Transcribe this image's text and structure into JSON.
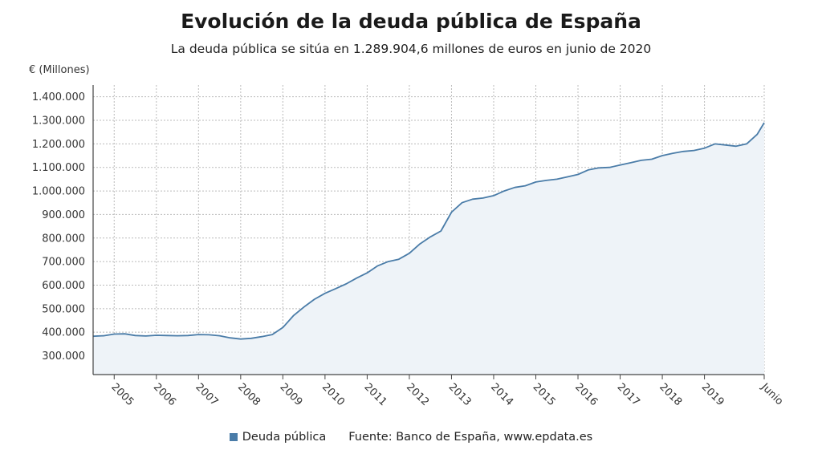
{
  "colors": {
    "series_line": "#4a7ca8",
    "area_fill": "#eef3f8",
    "grid": "#bbbbbb",
    "axis": "#444444"
  },
  "chart_data": {
    "type": "area",
    "title": "Evolución de la deuda pública de España",
    "subtitle": "La deuda pública se sitúa en 1.289.904,6 millones de euros en junio de 2020",
    "ylabel": "€ (Millones)",
    "xlabel": "",
    "ylim": [
      220000,
      1450000
    ],
    "yticks": [
      {
        "value": 300000,
        "label": "300.000"
      },
      {
        "value": 400000,
        "label": "400.000"
      },
      {
        "value": 500000,
        "label": "500.000"
      },
      {
        "value": 600000,
        "label": "600.000"
      },
      {
        "value": 700000,
        "label": "700.000"
      },
      {
        "value": 800000,
        "label": "800.000"
      },
      {
        "value": 900000,
        "label": "900.000"
      },
      {
        "value": 1000000,
        "label": "1.000.000"
      },
      {
        "value": 1100000,
        "label": "1.100.000"
      },
      {
        "value": 1200000,
        "label": "1.200.000"
      },
      {
        "value": 1300000,
        "label": "1.300.000"
      },
      {
        "value": 1400000,
        "label": "1.400.000"
      }
    ],
    "xlim": [
      "2004-07",
      "2020-06"
    ],
    "xticks": [
      {
        "x": "2005-01",
        "label": "2005"
      },
      {
        "x": "2006-01",
        "label": "2006"
      },
      {
        "x": "2007-01",
        "label": "2007"
      },
      {
        "x": "2008-01",
        "label": "2008"
      },
      {
        "x": "2009-01",
        "label": "2009"
      },
      {
        "x": "2010-01",
        "label": "2010"
      },
      {
        "x": "2011-01",
        "label": "2011"
      },
      {
        "x": "2012-01",
        "label": "2012"
      },
      {
        "x": "2013-01",
        "label": "2013"
      },
      {
        "x": "2014-01",
        "label": "2014"
      },
      {
        "x": "2015-01",
        "label": "2015"
      },
      {
        "x": "2016-01",
        "label": "2016"
      },
      {
        "x": "2017-01",
        "label": "2017"
      },
      {
        "x": "2018-01",
        "label": "2018"
      },
      {
        "x": "2019-01",
        "label": "2019"
      },
      {
        "x": "2020-06",
        "label": "Junio"
      }
    ],
    "grid": true,
    "legend_position": "bottom",
    "series": [
      {
        "name": "Deuda pública",
        "points": [
          [
            "2004-07",
            383000
          ],
          [
            "2004-10",
            385000
          ],
          [
            "2005-01",
            392000
          ],
          [
            "2005-04",
            393000
          ],
          [
            "2005-07",
            386000
          ],
          [
            "2005-10",
            384000
          ],
          [
            "2006-01",
            387000
          ],
          [
            "2006-04",
            386000
          ],
          [
            "2006-07",
            385000
          ],
          [
            "2006-10",
            386000
          ],
          [
            "2007-01",
            390000
          ],
          [
            "2007-04",
            389000
          ],
          [
            "2007-07",
            385000
          ],
          [
            "2007-10",
            376000
          ],
          [
            "2008-01",
            371000
          ],
          [
            "2008-04",
            374000
          ],
          [
            "2008-07",
            381000
          ],
          [
            "2008-10",
            390000
          ],
          [
            "2009-01",
            420000
          ],
          [
            "2009-04",
            470000
          ],
          [
            "2009-07",
            507000
          ],
          [
            "2009-10",
            540000
          ],
          [
            "2010-01",
            565000
          ],
          [
            "2010-04",
            585000
          ],
          [
            "2010-07",
            605000
          ],
          [
            "2010-10",
            630000
          ],
          [
            "2011-01",
            652000
          ],
          [
            "2011-04",
            682000
          ],
          [
            "2011-07",
            700000
          ],
          [
            "2011-10",
            710000
          ],
          [
            "2012-01",
            735000
          ],
          [
            "2012-04",
            775000
          ],
          [
            "2012-07",
            805000
          ],
          [
            "2012-10",
            830000
          ],
          [
            "2013-01",
            910000
          ],
          [
            "2013-04",
            950000
          ],
          [
            "2013-07",
            965000
          ],
          [
            "2013-10",
            970000
          ],
          [
            "2014-01",
            980000
          ],
          [
            "2014-04",
            1000000
          ],
          [
            "2014-07",
            1015000
          ],
          [
            "2014-10",
            1022000
          ],
          [
            "2015-01",
            1038000
          ],
          [
            "2015-04",
            1045000
          ],
          [
            "2015-07",
            1050000
          ],
          [
            "2015-10",
            1060000
          ],
          [
            "2016-01",
            1070000
          ],
          [
            "2016-04",
            1090000
          ],
          [
            "2016-07",
            1098000
          ],
          [
            "2016-10",
            1100000
          ],
          [
            "2017-01",
            1110000
          ],
          [
            "2017-04",
            1120000
          ],
          [
            "2017-07",
            1130000
          ],
          [
            "2017-10",
            1135000
          ],
          [
            "2018-01",
            1150000
          ],
          [
            "2018-04",
            1160000
          ],
          [
            "2018-07",
            1168000
          ],
          [
            "2018-10",
            1172000
          ],
          [
            "2019-01",
            1182000
          ],
          [
            "2019-04",
            1200000
          ],
          [
            "2019-07",
            1195000
          ],
          [
            "2019-10",
            1190000
          ],
          [
            "2020-01",
            1200000
          ],
          [
            "2020-04",
            1240000
          ],
          [
            "2020-06",
            1289904.6
          ]
        ]
      }
    ]
  },
  "legend": {
    "series_label": "Deuda pública",
    "source": "Fuente: Banco de España, www.epdata.es"
  }
}
